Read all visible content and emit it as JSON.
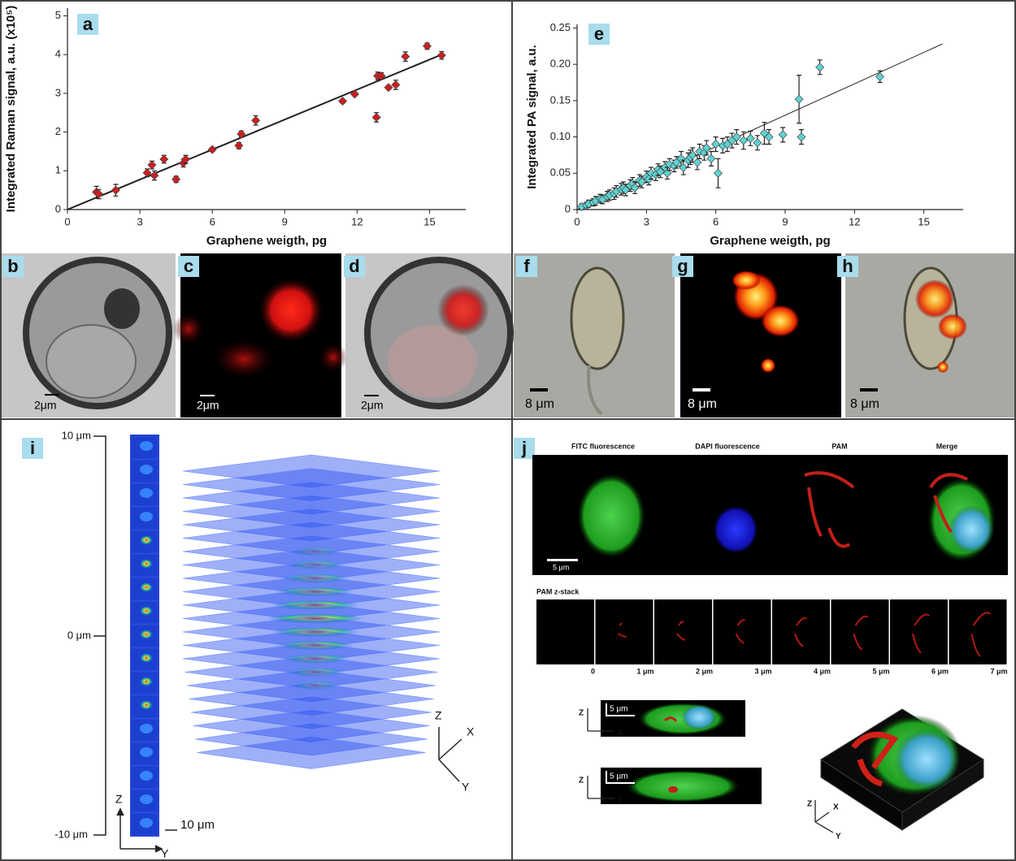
{
  "chart_data": [
    {
      "type": "scatter",
      "xlabel": "Graphene weigth, pg",
      "ylabel": "Integrated Raman signal, a.u. (x10⁵)",
      "color": "#cc1f1f",
      "x": [
        1.2,
        1.3,
        2,
        3.3,
        3.5,
        3.6,
        4,
        4.5,
        4.8,
        4.9,
        6,
        7.1,
        7.2,
        7.8,
        11.4,
        11.9,
        12.8,
        12.85,
        13,
        13.3,
        13.6,
        14,
        14.9,
        15.5
      ],
      "values": [
        0.45,
        0.4,
        0.5,
        0.95,
        1.15,
        0.88,
        1.3,
        0.78,
        1.2,
        1.3,
        1.55,
        1.65,
        1.95,
        2.3,
        2.8,
        2.98,
        2.38,
        3.45,
        3.45,
        3.15,
        3.22,
        3.95,
        4.22,
        3.98
      ],
      "errors": [
        0.15,
        0.12,
        0.15,
        0.1,
        0.1,
        0.12,
        0.1,
        0.08,
        0.1,
        0.1,
        0.05,
        0.08,
        0.08,
        0.12,
        0.05,
        0.05,
        0.12,
        0.1,
        0.08,
        0.05,
        0.12,
        0.12,
        0.08,
        0.1
      ],
      "fit": {
        "x": [
          0,
          15.5
        ],
        "values": [
          0,
          4.0
        ]
      },
      "xlim": [
        0,
        16.5
      ],
      "ylim": [
        0,
        5.2
      ],
      "xticks": [
        0,
        3,
        6,
        9,
        12,
        15
      ],
      "yticks": [
        0,
        1,
        2,
        3,
        4,
        5
      ]
    },
    {
      "type": "scatter",
      "xlabel": "Graphene weigth, pg",
      "ylabel": "Integrated PA signal, a.u.",
      "color": "#5fd3d3",
      "x": [
        0.2,
        0.4,
        0.5,
        0.7,
        0.8,
        1.0,
        1.1,
        1.3,
        1.4,
        1.6,
        1.7,
        1.9,
        2.0,
        2.1,
        2.3,
        2.4,
        2.5,
        2.7,
        2.8,
        3.0,
        3.1,
        3.2,
        3.4,
        3.5,
        3.6,
        3.8,
        3.9,
        4.0,
        4.2,
        4.3,
        4.5,
        4.6,
        4.8,
        4.9,
        5.0,
        5.2,
        5.3,
        5.5,
        5.6,
        5.8,
        6.0,
        6.1,
        6.3,
        6.5,
        6.7,
        6.9,
        7.2,
        7.5,
        7.8,
        8.1,
        8.3,
        8.9,
        9.6,
        9.7,
        10.5,
        13.1
      ],
      "values": [
        0.004,
        0.006,
        0.008,
        0.01,
        0.012,
        0.015,
        0.014,
        0.018,
        0.02,
        0.022,
        0.025,
        0.028,
        0.03,
        0.027,
        0.033,
        0.036,
        0.03,
        0.04,
        0.038,
        0.045,
        0.042,
        0.05,
        0.048,
        0.055,
        0.052,
        0.058,
        0.05,
        0.062,
        0.06,
        0.065,
        0.07,
        0.058,
        0.068,
        0.072,
        0.075,
        0.065,
        0.08,
        0.078,
        0.085,
        0.07,
        0.09,
        0.05,
        0.088,
        0.09,
        0.095,
        0.1,
        0.095,
        0.098,
        0.092,
        0.105,
        0.1,
        0.103,
        0.152,
        0.1,
        0.196,
        0.183
      ],
      "errors": [
        0.004,
        0.004,
        0.005,
        0.005,
        0.006,
        0.006,
        0.006,
        0.007,
        0.007,
        0.008,
        0.008,
        0.008,
        0.008,
        0.008,
        0.008,
        0.008,
        0.008,
        0.008,
        0.008,
        0.008,
        0.008,
        0.008,
        0.008,
        0.008,
        0.008,
        0.008,
        0.008,
        0.008,
        0.008,
        0.008,
        0.01,
        0.01,
        0.01,
        0.01,
        0.01,
        0.01,
        0.01,
        0.01,
        0.01,
        0.01,
        0.01,
        0.02,
        0.01,
        0.01,
        0.01,
        0.01,
        0.012,
        0.01,
        0.01,
        0.015,
        0.01,
        0.01,
        0.033,
        0.01,
        0.01,
        0.008
      ],
      "fit": {
        "x": [
          0,
          15.8
        ],
        "values": [
          0,
          0.228
        ]
      },
      "xlim": [
        0,
        16.7
      ],
      "ylim": [
        0,
        0.255
      ],
      "xticks": [
        0,
        3,
        6,
        9,
        12,
        15
      ],
      "yticks": [
        0,
        0.05,
        {
          "value": 0.1,
          "label": "0.10"
        },
        0.15,
        {
          "value": 0.2,
          "label": "0.20"
        },
        0.25
      ]
    }
  ],
  "panel_labels": [
    "a",
    "b",
    "c",
    "d",
    "e",
    "f",
    "g",
    "h",
    "i",
    "j"
  ],
  "images": {
    "b_scale": "2μm",
    "c_scale": "2μm",
    "d_scale": "2μm",
    "f_scale": "8 μm",
    "g_scale": "8 μm",
    "h_scale": "8 μm"
  },
  "panel_i": {
    "z_top": "10 μm",
    "z_mid": "0 μm",
    "z_bottom": "-10 μm",
    "scale": "10 μm",
    "strip_axes": [
      "Z",
      "Y"
    ],
    "stack_axes": [
      "Z",
      "X",
      "Y"
    ]
  },
  "panel_j": {
    "columns": [
      "FITC fluorescence",
      "DAPI fluorescence",
      "PAM",
      "Merge"
    ],
    "scale": "5 μm",
    "zstack_title": "PAM z-stack",
    "zstack_labels": [
      "0",
      "1 μm",
      "2 μm",
      "3 μm",
      "4 μm",
      "5 μm",
      "6 μm",
      "7 μm"
    ],
    "xz_axes": [
      "Z",
      "X"
    ],
    "xz_scale": "5 μm",
    "yz_axes": [
      "Z",
      "Y"
    ],
    "yz_scale": "5 μm",
    "box_axes": [
      "Z",
      "X",
      "Y"
    ]
  }
}
